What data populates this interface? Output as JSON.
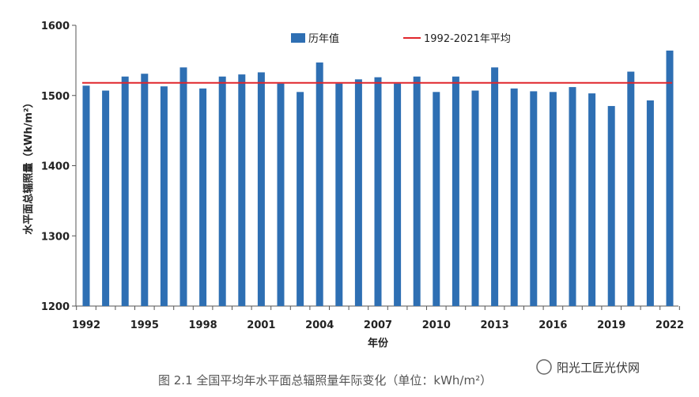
{
  "chart_data": {
    "type": "bar",
    "xlabel": "年份",
    "ylabel": "水平面总辐照量（kWh/m²）",
    "ylim": [
      1200,
      1600
    ],
    "yticks": [
      1200,
      1300,
      1400,
      1500,
      1600
    ],
    "xticks": [
      1992,
      1995,
      1998,
      2001,
      2004,
      2007,
      2010,
      2013,
      2016,
      2019,
      2022
    ],
    "grid": false,
    "legend_position": "top",
    "colors": {
      "bar": "#2e6fb3",
      "reference_line": "#e0262c"
    },
    "categories": [
      1992,
      1993,
      1994,
      1995,
      1996,
      1997,
      1998,
      1999,
      2000,
      2001,
      2002,
      2003,
      2004,
      2005,
      2006,
      2007,
      2008,
      2009,
      2010,
      2011,
      2012,
      2013,
      2014,
      2015,
      2016,
      2017,
      2018,
      2019,
      2020,
      2021,
      2022
    ],
    "series": [
      {
        "name": "历年值",
        "values": [
          1514,
          1507,
          1527,
          1531,
          1513,
          1540,
          1510,
          1527,
          1530,
          1533,
          1517,
          1505,
          1547,
          1517,
          1523,
          1526,
          1517,
          1527,
          1505,
          1527,
          1507,
          1540,
          1510,
          1506,
          1505,
          1512,
          1503,
          1485,
          1534,
          1493,
          1564
        ]
      }
    ],
    "reference_line": {
      "name": "1992-2021年平均",
      "value": 1518
    }
  },
  "caption": "图 2.1    全国平均年水平面总辐照量年际变化（单位：kWh/m²）",
  "watermark": "阳光工匠光伏网"
}
